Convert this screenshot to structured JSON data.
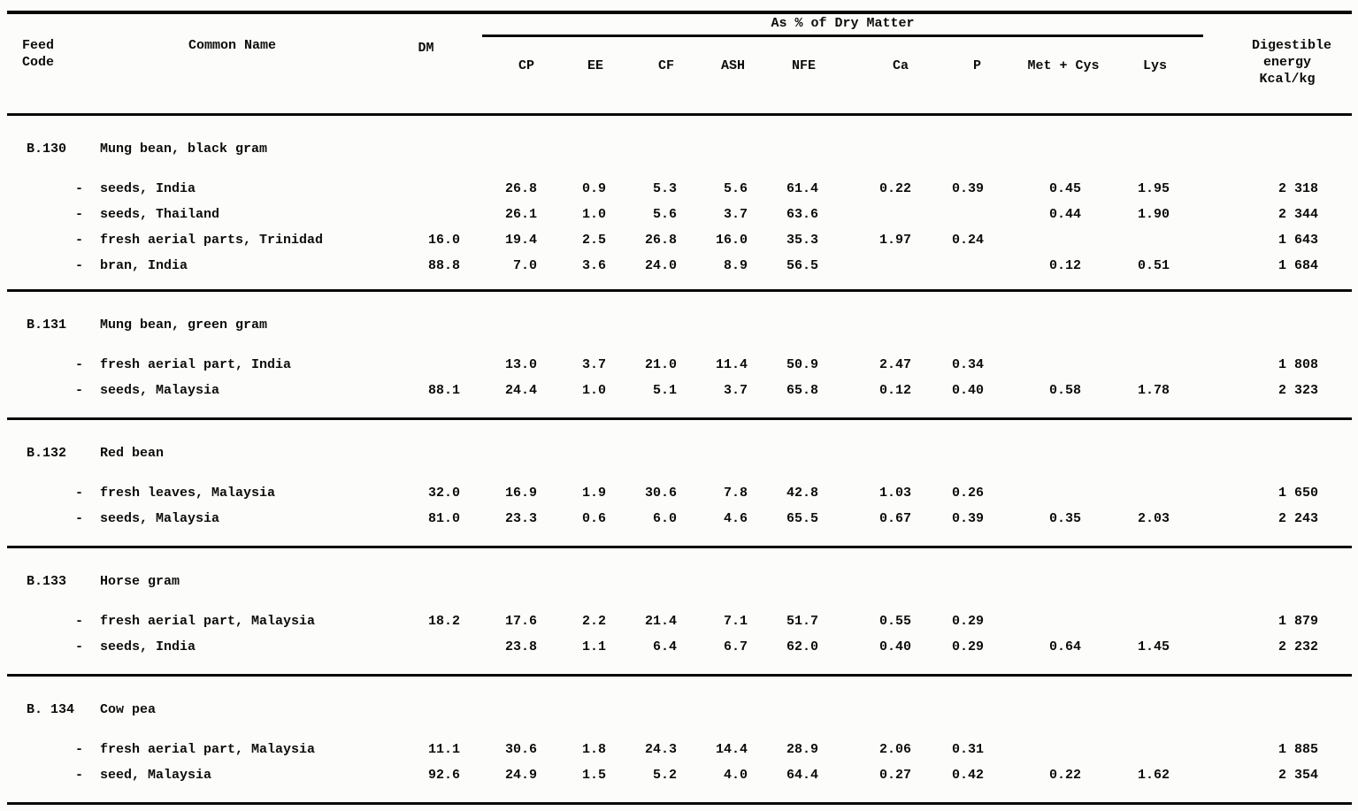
{
  "document": {
    "header": {
      "group_label": "As % of Dry Matter",
      "columns": {
        "feed_code": "Feed\nCode",
        "common_name": "Common Name",
        "dm": "DM",
        "cp": "CP",
        "ee": "EE",
        "cf": "CF",
        "ash": "ASH",
        "nfe": "NFE",
        "ca": "Ca",
        "p": "P",
        "met_cys": "Met + Cys",
        "lys": "Lys",
        "energy": "Digestible\nenergy\nKcal/kg"
      }
    },
    "sections": [
      {
        "code": "B.130",
        "title": "Mung bean, black gram",
        "items": [
          {
            "dash": "-",
            "name": "seeds, India",
            "values": [
              "",
              "26.8",
              "0.9",
              "5.3",
              "5.6",
              "61.4",
              "0.22",
              "0.39",
              "0.45",
              "1.95",
              "2 318"
            ]
          },
          {
            "dash": "-",
            "name": "seeds, Thailand",
            "values": [
              "",
              "26.1",
              "1.0",
              "5.6",
              "3.7",
              "63.6",
              "",
              "",
              "0.44",
              "1.90",
              "2 344"
            ]
          },
          {
            "dash": "-",
            "name": "fresh aerial parts, Trinidad",
            "values": [
              "16.0",
              "19.4",
              "2.5",
              "26.8",
              "16.0",
              "35.3",
              "1.97",
              "0.24",
              "",
              "",
              "1 643"
            ]
          },
          {
            "dash": "-",
            "name": "bran, India",
            "values": [
              "88.8",
              "7.0",
              "3.6",
              "24.0",
              "8.9",
              "56.5",
              "",
              "",
              "0.12",
              "0.51",
              "1 684"
            ]
          }
        ]
      },
      {
        "code": "B.131",
        "title": "Mung bean, green gram",
        "items": [
          {
            "dash": "-",
            "name": "fresh aerial part, India",
            "values": [
              "",
              "13.0",
              "3.7",
              "21.0",
              "11.4",
              "50.9",
              "2.47",
              "0.34",
              "",
              "",
              "1 808"
            ]
          },
          {
            "dash": "-",
            "name": "seeds, Malaysia",
            "values": [
              "88.1",
              "24.4",
              "1.0",
              "5.1",
              "3.7",
              "65.8",
              "0.12",
              "0.40",
              "0.58",
              "1.78",
              "2 323"
            ]
          }
        ]
      },
      {
        "code": "B.132",
        "title": "Red bean",
        "items": [
          {
            "dash": "-",
            "name": "fresh leaves, Malaysia",
            "values": [
              "32.0",
              "16.9",
              "1.9",
              "30.6",
              "7.8",
              "42.8",
              "1.03",
              "0.26",
              "",
              "",
              "1 650"
            ]
          },
          {
            "dash": "-",
            "name": "seeds, Malaysia",
            "values": [
              "81.0",
              "23.3",
              "0.6",
              "6.0",
              "4.6",
              "65.5",
              "0.67",
              "0.39",
              "0.35",
              "2.03",
              "2 243"
            ]
          }
        ]
      },
      {
        "code": "B.133",
        "title": "Horse gram",
        "items": [
          {
            "dash": "-",
            "name": "fresh aerial part, Malaysia",
            "values": [
              "18.2",
              "17.6",
              "2.2",
              "21.4",
              "7.1",
              "51.7",
              "0.55",
              "0.29",
              "",
              "",
              "1 879"
            ]
          },
          {
            "dash": "-",
            "name": "seeds, India",
            "values": [
              "",
              "23.8",
              "1.1",
              "6.4",
              "6.7",
              "62.0",
              "0.40",
              "0.29",
              "0.64",
              "1.45",
              "2 232"
            ]
          }
        ]
      },
      {
        "code": "B. 134",
        "title": "Cow pea",
        "items": [
          {
            "dash": "-",
            "name": "fresh aerial part, Malaysia",
            "values": [
              "11.1",
              "30.6",
              "1.8",
              "24.3",
              "14.4",
              "28.9",
              "2.06",
              "0.31",
              "",
              "",
              "1 885"
            ]
          },
          {
            "dash": "-",
            "name": "seed, Malaysia",
            "values": [
              "92.6",
              "24.9",
              "1.5",
              "5.2",
              "4.0",
              "64.4",
              "0.27",
              "0.42",
              "0.22",
              "1.62",
              "2 354"
            ]
          }
        ]
      }
    ]
  }
}
